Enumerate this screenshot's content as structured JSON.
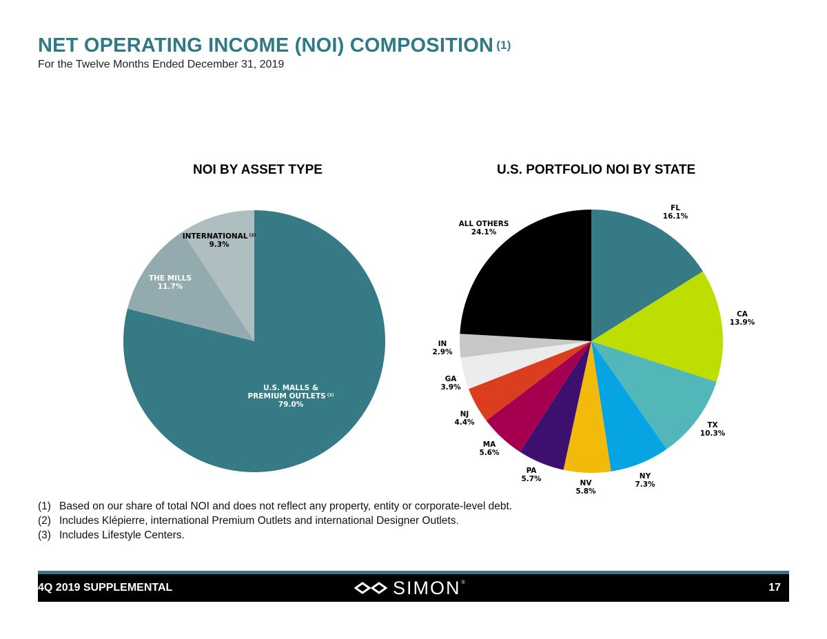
{
  "header": {
    "title": "NET OPERATING INCOME (NOI) COMPOSITION",
    "title_footnote": "(1)",
    "subtitle": "For the Twelve Months Ended December 31, 2019"
  },
  "chart_data": [
    {
      "type": "pie",
      "title": "NOI BY ASSET TYPE",
      "unit": "%",
      "slices": [
        {
          "name": "U.S. MALLS & PREMIUM OUTLETS",
          "label_lines": [
            "U.S. MALLS &",
            "PREMIUM OUTLETS"
          ],
          "note": "(3)",
          "value": 79.0,
          "value_label": "79.0%",
          "color": "#357a84",
          "text_color": "#ffffff"
        },
        {
          "name": "THE MILLS",
          "label_lines": [
            "THE MILLS"
          ],
          "note": "",
          "value": 11.7,
          "value_label": "11.7%",
          "color": "#93abaf",
          "text_color": "#ffffff"
        },
        {
          "name": "INTERNATIONAL",
          "label_lines": [
            "INTERNATIONAL"
          ],
          "note": "(2)",
          "value": 9.3,
          "value_label": "9.3%",
          "color": "#afbfc1",
          "text_color": "#000000"
        }
      ]
    },
    {
      "type": "pie",
      "title": "U.S. PORTFOLIO NOI BY STATE",
      "unit": "%",
      "slices": [
        {
          "name": "FL",
          "value": 16.1,
          "value_label": "16.1%",
          "color": "#357a84"
        },
        {
          "name": "CA",
          "value": 13.9,
          "value_label": "13.9%",
          "color": "#bedd00"
        },
        {
          "name": "TX",
          "value": 10.3,
          "value_label": "10.3%",
          "color": "#53b6b9"
        },
        {
          "name": "NY",
          "value": 7.3,
          "value_label": "7.3%",
          "color": "#07a4e4"
        },
        {
          "name": "NV",
          "value": 5.8,
          "value_label": "5.8%",
          "color": "#f2bb0b"
        },
        {
          "name": "PA",
          "value": 5.7,
          "value_label": "5.7%",
          "color": "#3d0f6e"
        },
        {
          "name": "MA",
          "value": 5.6,
          "value_label": "5.6%",
          "color": "#a4004f"
        },
        {
          "name": "NJ",
          "value": 4.4,
          "value_label": "4.4%",
          "color": "#db3e1f"
        },
        {
          "name": "GA",
          "value": 3.9,
          "value_label": "3.9%",
          "color": "#ececec"
        },
        {
          "name": "IN",
          "value": 2.9,
          "value_label": "2.9%",
          "color": "#c8c8c8"
        },
        {
          "name": "ALL OTHERS",
          "value": 24.1,
          "value_label": "24.1%",
          "color": "#000000"
        }
      ]
    }
  ],
  "footnotes": [
    {
      "num": "(1)",
      "text": "Based on our share of total NOI and does not reflect any property, entity or corporate-level debt."
    },
    {
      "num": "(2)",
      "text": "Includes Klépierre, international Premium Outlets and international Designer Outlets."
    },
    {
      "num": "(3)",
      "text": "Includes Lifestyle Centers."
    }
  ],
  "footer": {
    "left_text": "4Q 2019 SUPPLEMENTAL",
    "logo_text": "SIMON",
    "logo_mark": "®",
    "page_number": "17",
    "stripe_color": "#2f7b85"
  }
}
